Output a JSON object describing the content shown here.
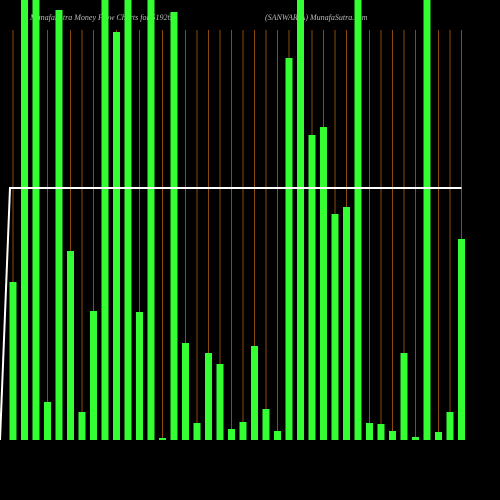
{
  "chart_data": {
    "type": "bar",
    "title": "MunafaSutra  Money Flow  Charts for 519260",
    "subtitle": "(SANWARIA) MunafaSutra.com",
    "categories": [
      null,
      null,
      null,
      null,
      null,
      null,
      null,
      null,
      null,
      null,
      null,
      null,
      null,
      null,
      null,
      null,
      null,
      null,
      null,
      null,
      null,
      null,
      null,
      null,
      null,
      null,
      null,
      null,
      null,
      null,
      null,
      null,
      null,
      null,
      null,
      null,
      null,
      null,
      null,
      null
    ],
    "values": [
      158,
      440,
      440,
      38,
      430,
      189,
      28,
      129,
      440,
      408,
      440,
      128,
      440,
      2,
      428,
      97,
      17,
      87,
      76,
      11,
      18,
      94,
      31,
      9,
      382,
      440,
      305,
      313,
      226,
      233,
      440,
      17,
      16,
      9,
      87,
      3,
      440,
      8,
      28,
      201
    ],
    "color": "#33ff33",
    "grid_color": "#8b4a0c",
    "line": {
      "color": "#ffffff",
      "values": [
        252,
        252,
        252,
        252,
        252,
        252,
        252,
        252,
        252,
        252,
        252,
        252,
        252,
        252,
        252,
        252,
        252,
        252,
        252,
        252,
        252,
        252,
        252,
        252,
        252,
        252,
        252,
        252,
        252,
        252,
        252,
        252,
        252,
        252,
        252,
        252,
        252,
        252,
        252,
        252
      ]
    },
    "ylim": [
      0,
      440
    ]
  }
}
